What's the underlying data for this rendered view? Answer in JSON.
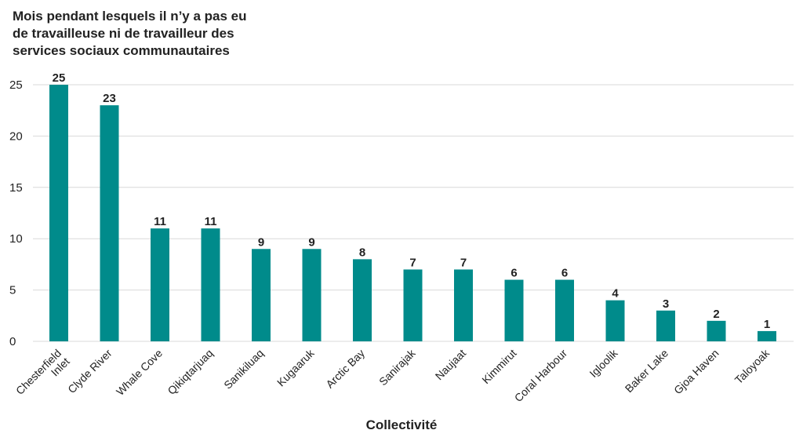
{
  "chart_data": {
    "type": "bar",
    "title_lines": [
      "Mois pendant lesquels il n’y a pas eu",
      "de travailleuse ni de travailleur des",
      "services sociaux communautaires"
    ],
    "categories": [
      [
        "Chesterfield",
        "Inlet"
      ],
      [
        "Clyde River"
      ],
      [
        "Whale Cove"
      ],
      [
        "Qikiqtarjuaq"
      ],
      [
        "Sanikiluaq"
      ],
      [
        "Kugaaruk"
      ],
      [
        "Arctic Bay"
      ],
      [
        "Sanirajak"
      ],
      [
        "Naujaat"
      ],
      [
        "Kimmirut"
      ],
      [
        "Coral Harbour"
      ],
      [
        "Igloolik"
      ],
      [
        "Baker Lake"
      ],
      [
        "Gjoa Haven"
      ],
      [
        "Taloyoak"
      ]
    ],
    "values": [
      25,
      23,
      11,
      11,
      9,
      9,
      8,
      7,
      7,
      6,
      6,
      4,
      3,
      2,
      1
    ],
    "data_labels": [
      "25",
      "23",
      "11",
      "11",
      "9",
      "9",
      "8",
      "7",
      "7",
      "6",
      "6",
      "4",
      "3",
      "2",
      "1"
    ],
    "yticks": [
      0,
      5,
      10,
      15,
      20,
      25
    ],
    "ylim": [
      0,
      25
    ],
    "xlabel": "Collectivité",
    "ylabel": "",
    "grid": true,
    "bar_color": "#008b8b",
    "text_color": "#222222",
    "grid_color": "#d9d9d9"
  }
}
